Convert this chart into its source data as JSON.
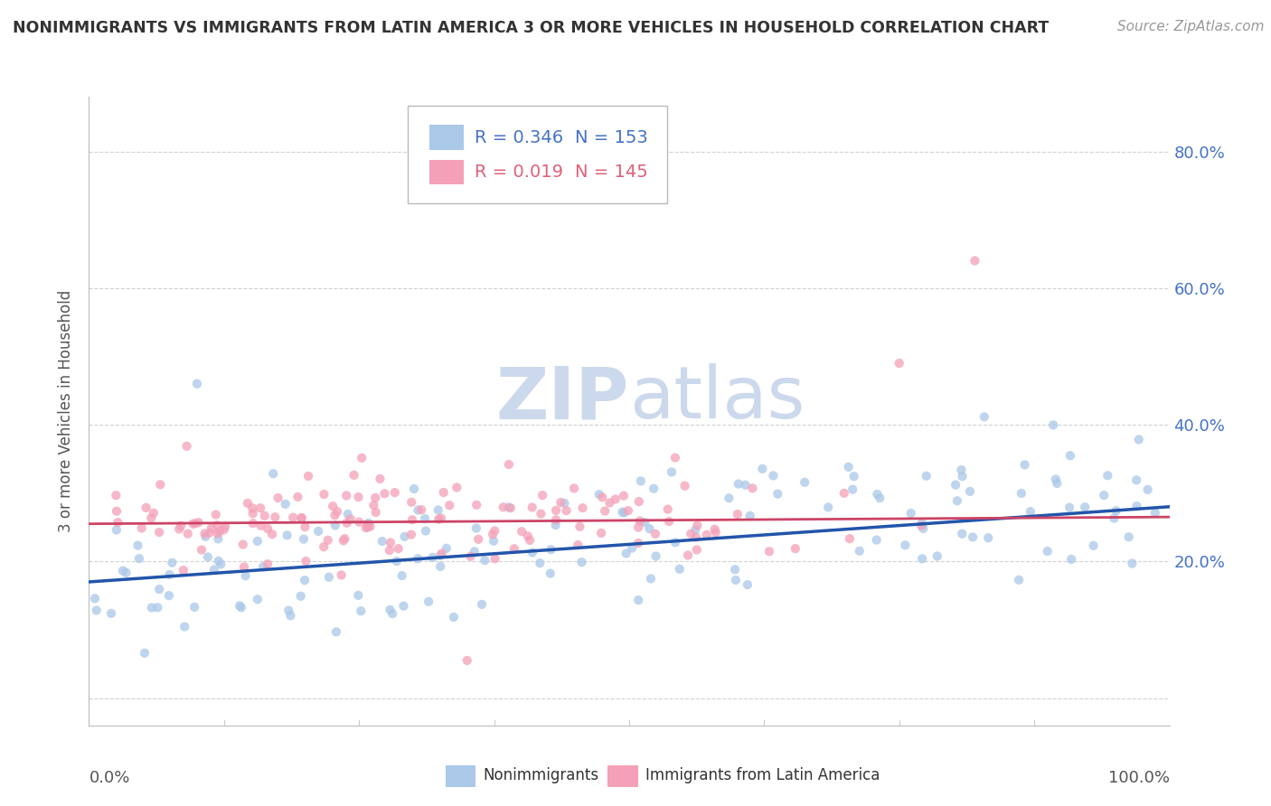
{
  "title": "NONIMMIGRANTS VS IMMIGRANTS FROM LATIN AMERICA 3 OR MORE VEHICLES IN HOUSEHOLD CORRELATION CHART",
  "source": "Source: ZipAtlas.com",
  "ylabel": "3 or more Vehicles in Household",
  "y_ticks": [
    0.0,
    0.2,
    0.4,
    0.6,
    0.8
  ],
  "y_tick_labels_right": [
    "",
    "20.0%",
    "40.0%",
    "60.0%",
    "80.0%"
  ],
  "x_range": [
    0.0,
    1.0
  ],
  "y_range": [
    -0.04,
    0.88
  ],
  "legend_r1": "0.346",
  "legend_n1": "153",
  "legend_r2": "0.019",
  "legend_n2": "145",
  "color_blue": "#aac8e8",
  "color_pink": "#f4a0b8",
  "color_blue_text": "#4472c4",
  "color_pink_text": "#e0607a",
  "line_blue": "#2255aa",
  "line_pink": "#cc4466",
  "watermark_zip": "ZIP",
  "watermark_atlas": "atlas",
  "watermark_color": "#ccd8ec",
  "background_color": "#ffffff",
  "grid_color": "#cccccc",
  "seed": 42,
  "n_blue": 153,
  "n_pink": 145,
  "blue_line_start": 0.17,
  "blue_line_end": 0.28,
  "pink_line_start": 0.255,
  "pink_line_end": 0.265
}
